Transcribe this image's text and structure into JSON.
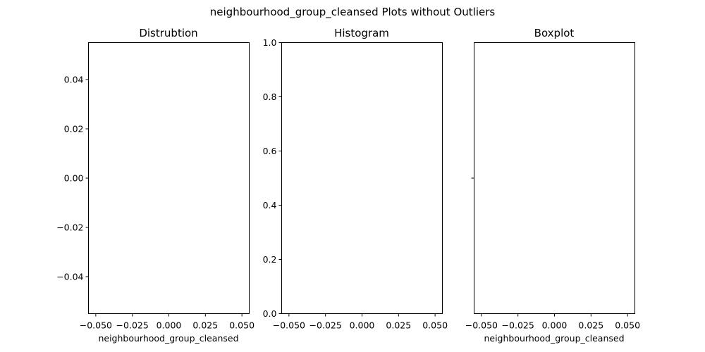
{
  "suptitle": "neighbourhood_group_cleansed Plots without Outliers",
  "chart_data": [
    {
      "type": "line",
      "title": "Distrubtion",
      "xlabel": "neighbourhood_group_cleansed",
      "ylabel": "",
      "xlim": [
        -0.055,
        0.055
      ],
      "ylim": [
        -0.055,
        0.055
      ],
      "xticks": [
        "−0.050",
        "−0.025",
        "0.000",
        "0.025",
        "0.050"
      ],
      "yticks": [
        "0.04",
        "0.02",
        "0.00",
        "−0.02",
        "−0.04"
      ],
      "series": [],
      "grid": false
    },
    {
      "type": "bar",
      "title": "Histogram",
      "xlabel": "",
      "ylabel": "",
      "xlim": [
        -0.055,
        0.055
      ],
      "ylim": [
        0,
        1
      ],
      "xticks": [
        "−0.050",
        "−0.025",
        "0.000",
        "0.025",
        "0.050"
      ],
      "yticks": [
        "1.0",
        "0.8",
        "0.6",
        "0.4",
        "0.2",
        "0.0"
      ],
      "series": [],
      "grid": false
    },
    {
      "type": "box",
      "title": "Boxplot",
      "xlabel": "neighbourhood_group_cleansed",
      "ylabel": "",
      "xlim": [
        -0.055,
        0.055
      ],
      "xticks": [
        "−0.050",
        "−0.025",
        "0.000",
        "0.025",
        "0.050"
      ],
      "yticks": [
        ""
      ],
      "series": [],
      "grid": false
    }
  ]
}
